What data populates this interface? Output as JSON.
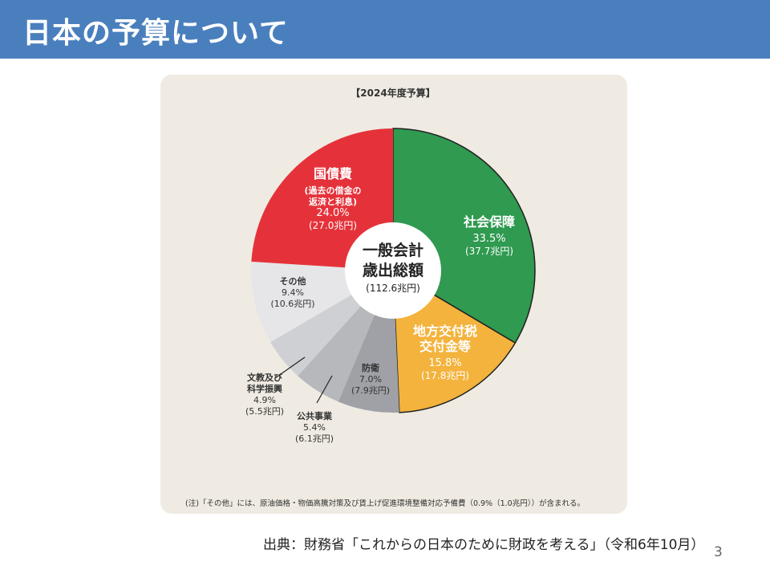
{
  "header": {
    "title": "日本の予算について"
  },
  "chart_data": {
    "type": "pie",
    "title": "【2024年度予算】",
    "center_label": [
      "一般会計",
      "歳出総額",
      "(112.6兆円)"
    ],
    "total_trillion_yen": 112.6,
    "slices": [
      {
        "name": "社会保障",
        "label": [
          "社会保障"
        ],
        "percent": 33.5,
        "amount": "(37.7兆円)",
        "value": 37.7,
        "color": "#2f9a50",
        "text_color": "#ffffff"
      },
      {
        "name": "地方交付税交付金等",
        "label": [
          "地方交付税",
          "交付金等"
        ],
        "percent": 15.8,
        "amount": "(17.8兆円)",
        "value": 17.8,
        "color": "#f3b33d",
        "text_color": "#ffffff"
      },
      {
        "name": "防衛",
        "label": [
          "防衛"
        ],
        "percent": 7.0,
        "amount": "(7.9兆円)",
        "value": 7.9,
        "color": "#a0a1a6",
        "text_color": "#333333"
      },
      {
        "name": "公共事業",
        "label": [
          "公共事業"
        ],
        "percent": 5.4,
        "amount": "(6.1兆円)",
        "value": 6.1,
        "color": "#b7b8bc",
        "text_color": "#333333"
      },
      {
        "name": "文教及び科学振興",
        "label": [
          "文教及び",
          "科学振興"
        ],
        "percent": 4.9,
        "amount": "(5.5兆円)",
        "value": 5.5,
        "color": "#cfd0d3",
        "text_color": "#333333"
      },
      {
        "name": "その他",
        "label": [
          "その他"
        ],
        "percent": 9.4,
        "amount": "(10.6兆円)",
        "value": 10.6,
        "color": "#e6e6e8",
        "text_color": "#333333"
      },
      {
        "name": "国債費",
        "label": [
          "国債費",
          "(過去の借金の",
          "返済と利息)"
        ],
        "percent": 24.0,
        "amount": "(27.0兆円)",
        "value": 27.0,
        "color": "#e5323a",
        "text_color": "#ffffff"
      }
    ],
    "note": "(注)「その他」には、原油価格・物価高騰対策及び賃上げ促進環境整備対応予備費（0.9%（1.0兆円））が含まれる。"
  },
  "footer": {
    "source": "出典：財務省「これからの日本のために財政を考える」（令和6年10月）",
    "page_number": "3"
  }
}
